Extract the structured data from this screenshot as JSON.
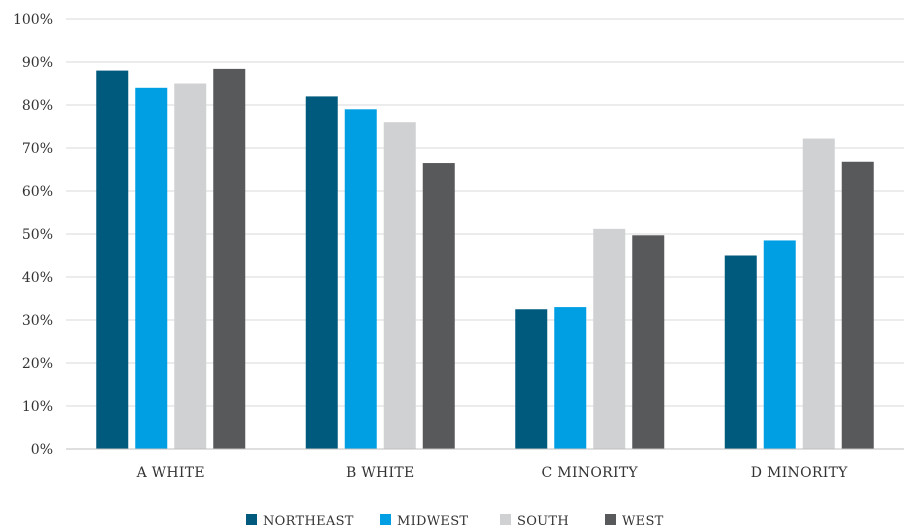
{
  "chart_data": {
    "type": "bar",
    "categories": [
      "A WHITE",
      "B WHITE",
      "C MINORITY",
      "D MINORITY"
    ],
    "series": [
      {
        "name": "NORTHEAST",
        "color": "#005a7e",
        "values": [
          88,
          82,
          32.5,
          45
        ]
      },
      {
        "name": "MIDWEST",
        "color": "#009fe3",
        "values": [
          84,
          79,
          33,
          48.5
        ]
      },
      {
        "name": "SOUTH",
        "color": "#d0d1d3",
        "values": [
          85,
          76,
          51.2,
          72.2
        ]
      },
      {
        "name": "WEST",
        "color": "#58595b",
        "values": [
          88.4,
          66.5,
          49.7,
          66.8
        ]
      }
    ],
    "ylim": [
      0,
      100
    ],
    "ytick_labels": [
      "0%",
      "10%",
      "20%",
      "30%",
      "40%",
      "50%",
      "60%",
      "70%",
      "80%",
      "90%",
      "100%"
    ],
    "grid": true,
    "legend_position": "bottom"
  }
}
